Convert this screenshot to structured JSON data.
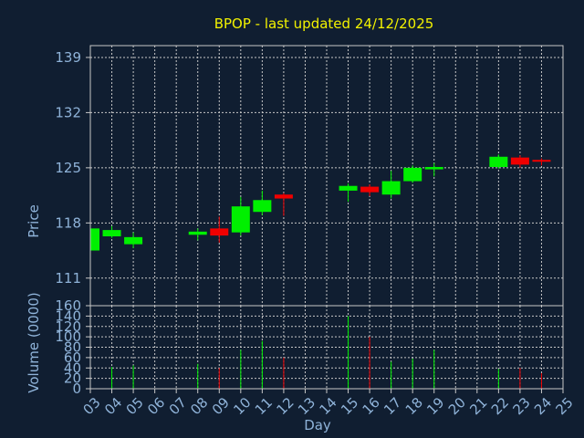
{
  "chart_data": {
    "type": "candlestick",
    "title": "BPOP - last updated 24/12/2025",
    "xlabel": "Day",
    "colors": {
      "background": "#101e31",
      "title": "#f2f200",
      "axis_text": "#8fb3d9",
      "grid": "#c8c8c8",
      "up": "#00f000",
      "down": "#f00000"
    },
    "x_ticks": [
      "03",
      "04",
      "05",
      "06",
      "07",
      "08",
      "09",
      "10",
      "11",
      "12",
      "13",
      "14",
      "15",
      "16",
      "17",
      "18",
      "19",
      "20",
      "21",
      "22",
      "23",
      "24",
      "25"
    ],
    "x_range": [
      3,
      25
    ],
    "price_panel": {
      "ylabel": "Price",
      "yticks": [
        111,
        118,
        125,
        132,
        139
      ],
      "ylim": [
        107.5,
        140.5
      ],
      "grid": true
    },
    "volume_panel": {
      "ylabel": "Volume (0000)",
      "yticks": [
        0,
        20,
        40,
        60,
        80,
        100,
        120,
        140,
        160
      ],
      "ylim": [
        0,
        160
      ],
      "grid": true
    },
    "candles": [
      {
        "day": 3,
        "open": 114.5,
        "close": 117.3,
        "high": 117.5,
        "low": 114.3,
        "volume": 0
      },
      {
        "day": 4,
        "open": 116.3,
        "close": 117.1,
        "high": 117.6,
        "low": 116.1,
        "volume": 42
      },
      {
        "day": 5,
        "open": 115.3,
        "close": 116.2,
        "high": 116.8,
        "low": 114.8,
        "volume": 45
      },
      {
        "day": 8,
        "open": 116.5,
        "close": 116.9,
        "high": 117.3,
        "low": 115.8,
        "volume": 48
      },
      {
        "day": 9,
        "open": 117.3,
        "close": 116.4,
        "high": 118.8,
        "low": 115.5,
        "volume": 40
      },
      {
        "day": 10,
        "open": 116.8,
        "close": 120.1,
        "high": 121.3,
        "low": 116.4,
        "volume": 75
      },
      {
        "day": 11,
        "open": 119.4,
        "close": 120.9,
        "high": 122.1,
        "low": 119.0,
        "volume": 92
      },
      {
        "day": 12,
        "open": 121.6,
        "close": 121.1,
        "high": 121.8,
        "low": 118.9,
        "volume": 60
      },
      {
        "day": 15,
        "open": 122.1,
        "close": 122.7,
        "high": 123.0,
        "low": 120.7,
        "volume": 140
      },
      {
        "day": 16,
        "open": 122.6,
        "close": 121.9,
        "high": 122.9,
        "low": 121.4,
        "volume": 100
      },
      {
        "day": 17,
        "open": 121.6,
        "close": 123.3,
        "high": 124.6,
        "low": 121.1,
        "volume": 52
      },
      {
        "day": 18,
        "open": 123.3,
        "close": 125.0,
        "high": 125.3,
        "low": 123.1,
        "volume": 58
      },
      {
        "day": 19,
        "open": 124.8,
        "close": 125.1,
        "high": 125.6,
        "low": 123.9,
        "volume": 75
      },
      {
        "day": 22,
        "open": 125.1,
        "close": 126.4,
        "high": 126.7,
        "low": 124.9,
        "volume": 38
      },
      {
        "day": 23,
        "open": 126.3,
        "close": 125.4,
        "high": 126.6,
        "low": 125.0,
        "volume": 40
      },
      {
        "day": 24,
        "open": 126.0,
        "close": 125.9,
        "high": 126.2,
        "low": 125.3,
        "volume": 30
      }
    ]
  }
}
